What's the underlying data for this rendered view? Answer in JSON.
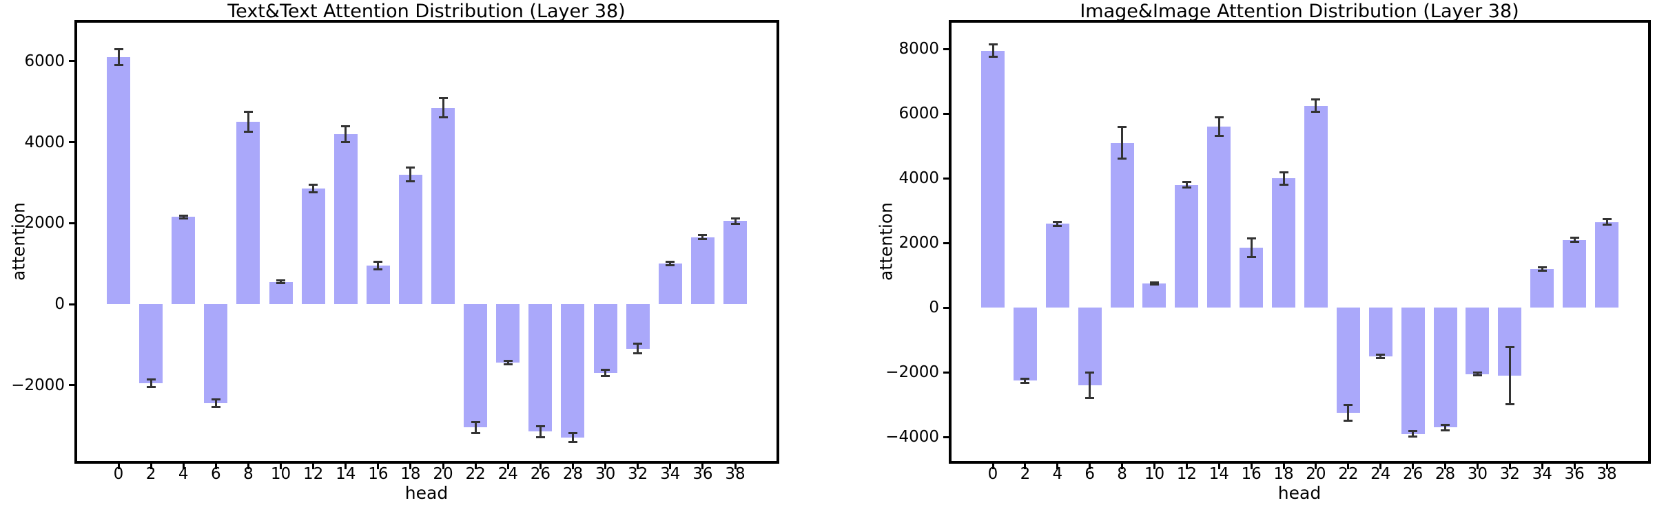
{
  "chart_data": [
    {
      "type": "bar",
      "title": "Text&Text Attention Distribution (Layer 38)",
      "xlabel": "head",
      "ylabel": "attention",
      "categories": [
        0,
        2,
        4,
        6,
        8,
        10,
        12,
        14,
        16,
        18,
        20,
        22,
        24,
        26,
        28,
        30,
        32,
        34,
        36,
        38
      ],
      "values": [
        6100,
        -1950,
        2150,
        -2450,
        4500,
        550,
        2850,
        4200,
        950,
        3200,
        4850,
        -3050,
        -1450,
        -3150,
        -3300,
        -1700,
        -1100,
        1000,
        1650,
        2050
      ],
      "errors": [
        200,
        100,
        50,
        100,
        260,
        40,
        100,
        200,
        100,
        180,
        250,
        150,
        50,
        150,
        120,
        80,
        130,
        50,
        60,
        80
      ],
      "yticks": [
        6000,
        4000,
        2000,
        0,
        -2000
      ],
      "ytick_labels": [
        "6000",
        "4000",
        "2000",
        "0",
        "−2000"
      ],
      "ylim": [
        -3874,
        6950
      ],
      "grid": false,
      "legend": null,
      "bar_color": "#aaa8fa",
      "error_color": "#333333",
      "axis_color": "#000000"
    },
    {
      "type": "bar",
      "title": "Image&Image Attention Distribution (Layer 38)",
      "xlabel": "head",
      "ylabel": "attention",
      "categories": [
        0,
        2,
        4,
        6,
        8,
        10,
        12,
        14,
        16,
        18,
        20,
        22,
        24,
        26,
        28,
        30,
        32,
        34,
        36,
        38
      ],
      "values": [
        7950,
        -2250,
        2600,
        -2400,
        5100,
        750,
        3800,
        5600,
        1850,
        4000,
        6250,
        -3250,
        -1500,
        -3900,
        -3700,
        -2050,
        -2100,
        1200,
        2100,
        2650
      ],
      "errors": [
        200,
        75,
        75,
        400,
        500,
        50,
        90,
        300,
        300,
        200,
        200,
        250,
        60,
        100,
        100,
        50,
        900,
        60,
        70,
        100
      ],
      "yticks": [
        8000,
        6000,
        4000,
        2000,
        0,
        -2000,
        -4000
      ],
      "ytick_labels": [
        "8000",
        "6000",
        "4000",
        "2000",
        "0",
        "−2000",
        "−4000"
      ],
      "ylim": [
        -4738,
        8815
      ],
      "grid": false,
      "legend": null,
      "bar_color": "#aaa8fa",
      "error_color": "#333333",
      "axis_color": "#000000"
    }
  ]
}
